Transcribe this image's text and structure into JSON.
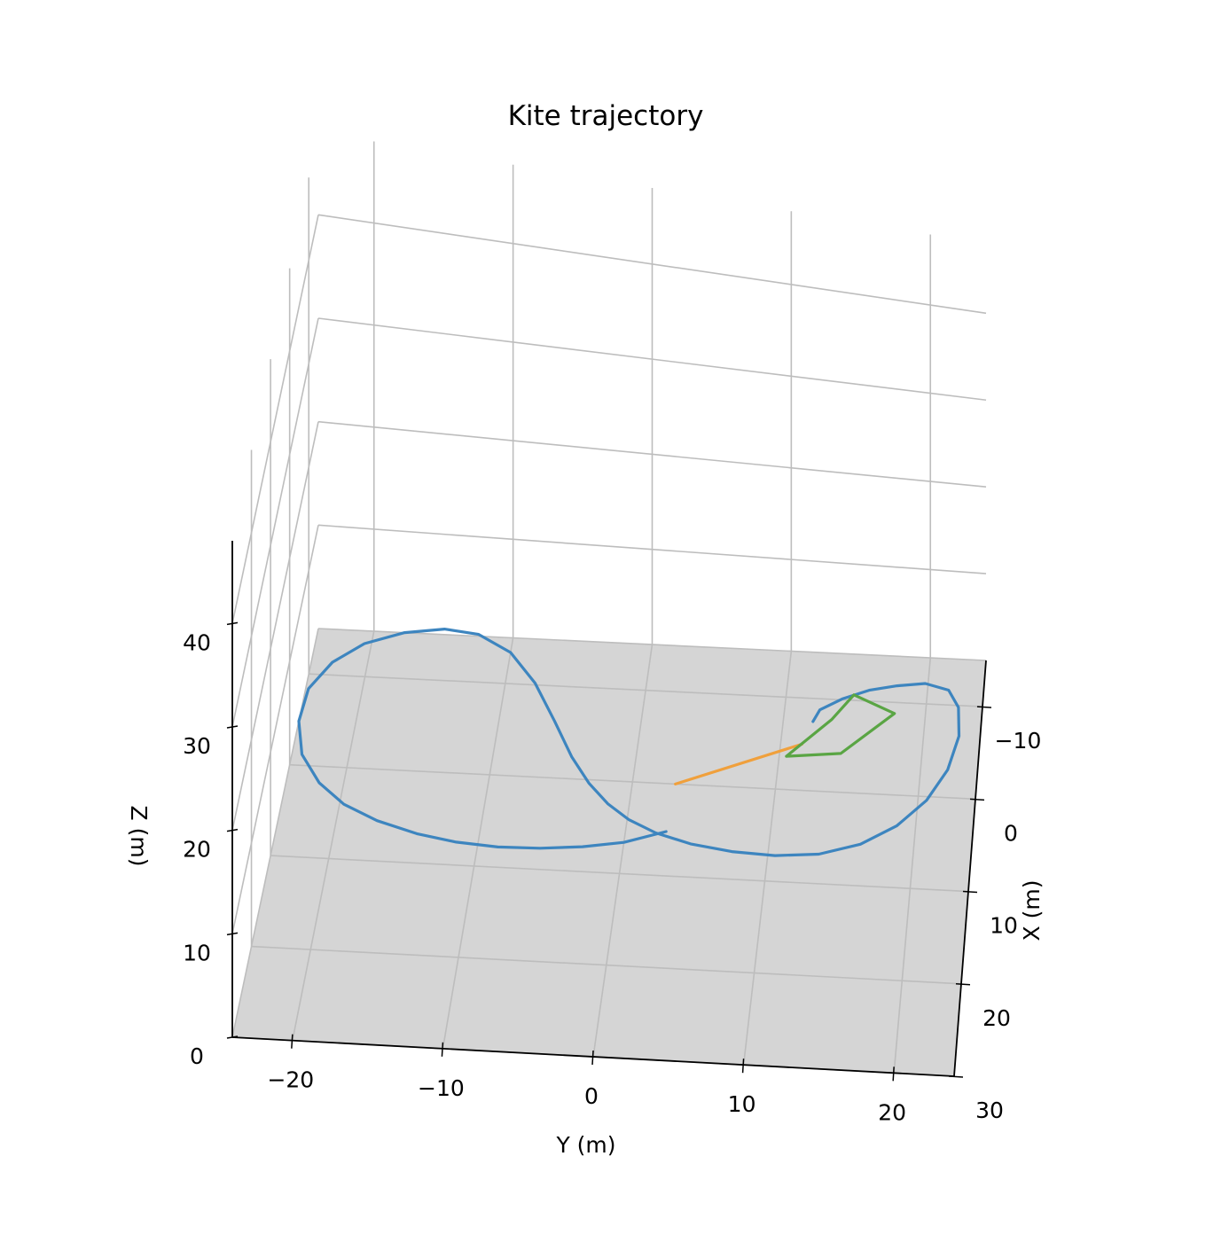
{
  "chart_data": {
    "type": "line",
    "projection": "3d",
    "title": "Kite trajectory",
    "xlabel": "X (m)",
    "ylabel": "Y (m)",
    "zlabel": "Z (m)",
    "x_ticks": [
      "−10",
      "0",
      "10",
      "20",
      "30"
    ],
    "y_ticks": [
      "−20",
      "−10",
      "0",
      "10",
      "20"
    ],
    "z_ticks": [
      "0",
      "10",
      "20",
      "30",
      "40"
    ],
    "xlim": [
      -15,
      30
    ],
    "ylim": [
      -24,
      24
    ],
    "zlim": [
      0,
      48
    ],
    "grid": true,
    "floor_color": "#d5d5d5",
    "grid_color": "#bdbdbd",
    "series": [
      {
        "kind": "trajectory",
        "color": "#3d85bf",
        "points_xy": [
          [
            -7.5,
            12.1
          ],
          [
            -8.8,
            12.5
          ],
          [
            -10.1,
            14.0
          ],
          [
            -11.2,
            15.9
          ],
          [
            -11.8,
            17.8
          ],
          [
            -12.2,
            19.8
          ],
          [
            -11.6,
            21.5
          ],
          [
            -9.8,
            22.3
          ],
          [
            -6.7,
            22.5
          ],
          [
            -3.0,
            21.9
          ],
          [
            0.4,
            20.6
          ],
          [
            3.3,
            18.7
          ],
          [
            5.5,
            16.3
          ],
          [
            6.8,
            13.5
          ],
          [
            7.2,
            10.5
          ],
          [
            7.0,
            7.5
          ],
          [
            6.4,
            4.6
          ],
          [
            5.4,
            2.1
          ],
          [
            4.1,
            0.1
          ],
          [
            2.5,
            -1.5
          ],
          [
            0.4,
            -3.0
          ],
          [
            -2.4,
            -4.5
          ],
          [
            -6.2,
            -6.1
          ],
          [
            -10.2,
            -7.9
          ],
          [
            -13.4,
            -10.0
          ],
          [
            -15.2,
            -12.5
          ],
          [
            -15.6,
            -15.0
          ],
          [
            -15.0,
            -17.8
          ],
          [
            -13.6,
            -20.5
          ],
          [
            -11.4,
            -22.5
          ],
          [
            -8.4,
            -23.8
          ],
          [
            -4.8,
            -24.0
          ],
          [
            -1.2,
            -23.3
          ],
          [
            1.8,
            -21.7
          ],
          [
            4.0,
            -19.7
          ],
          [
            5.6,
            -17.2
          ],
          [
            6.8,
            -14.3
          ],
          [
            7.5,
            -11.5
          ],
          [
            7.8,
            -8.6
          ],
          [
            7.7,
            -5.7
          ],
          [
            7.3,
            -2.8
          ],
          [
            6.6,
            0.0
          ],
          [
            5.2,
            2.8
          ]
        ]
      },
      {
        "kind": "tether",
        "color": "#f0a03c",
        "points_xy": [
          [
            0.0,
            3.0
          ],
          [
            -5.0,
            11.5
          ]
        ]
      },
      {
        "kind": "kite",
        "color": "#5aa544",
        "points_xy": [
          [
            -7.8,
            13.4
          ],
          [
            -10.6,
            14.8
          ],
          [
            -8.8,
            17.8
          ],
          [
            -4.2,
            14.3
          ],
          [
            -3.6,
            10.5
          ],
          [
            -7.8,
            13.4
          ]
        ]
      }
    ]
  }
}
